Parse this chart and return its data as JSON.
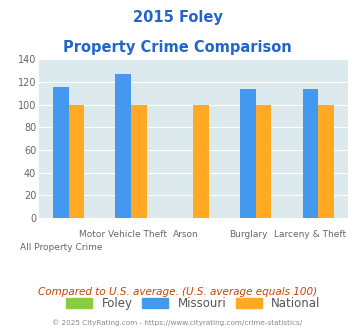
{
  "title_line1": "2015 Foley",
  "title_line2": "Property Crime Comparison",
  "title_color": "#2266cc",
  "groups": [
    {
      "label_top": "",
      "label_bottom": "All Property Crime",
      "foley": 0,
      "missouri": 116,
      "national": 100
    },
    {
      "label_top": "Motor Vehicle Theft",
      "label_bottom": "",
      "foley": 0,
      "missouri": 127,
      "national": 100
    },
    {
      "label_top": "Arson",
      "label_bottom": "",
      "foley": 0,
      "missouri": 0,
      "national": 100
    },
    {
      "label_top": "Burglary",
      "label_bottom": "",
      "foley": 0,
      "missouri": 114,
      "national": 100
    },
    {
      "label_top": "Larceny & Theft",
      "label_bottom": "",
      "foley": 0,
      "missouri": 114,
      "national": 100
    }
  ],
  "foley_color": "#88cc44",
  "missouri_color": "#4499ee",
  "national_color": "#ffaa22",
  "bg_color": "#ddeaed",
  "ylim": [
    0,
    140
  ],
  "yticks": [
    0,
    20,
    40,
    60,
    80,
    100,
    120,
    140
  ],
  "footnote1": "Compared to U.S. average. (U.S. average equals 100)",
  "footnote2": "© 2025 CityRating.com - https://www.cityrating.com/crime-statistics/",
  "footnote1_color": "#cc4400",
  "footnote2_color": "#888888"
}
